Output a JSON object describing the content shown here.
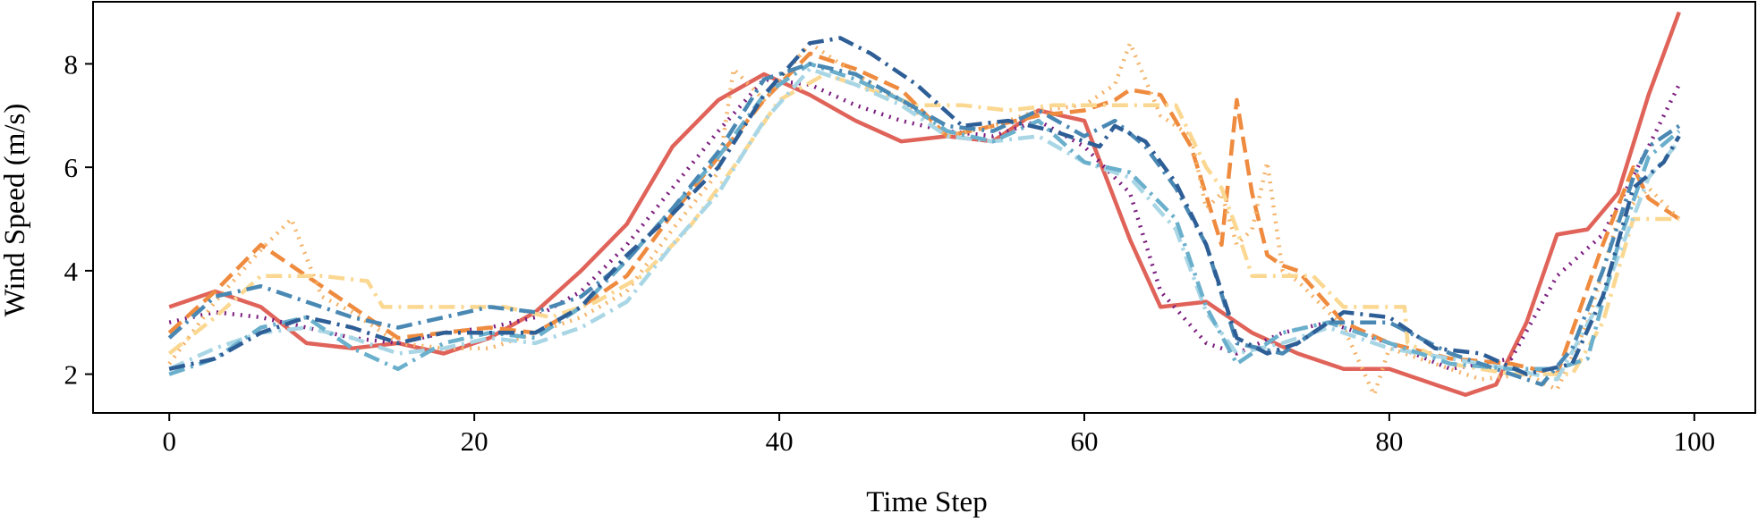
{
  "chart_data": {
    "type": "line",
    "xlabel": "Time Step",
    "ylabel": "Wind Speed (m/s)",
    "xlim": [
      -5,
      104
    ],
    "ylim": [
      1.25,
      9.2
    ],
    "xticks": [
      0,
      20,
      40,
      60,
      80,
      100
    ],
    "yticks": [
      2,
      4,
      6,
      8
    ],
    "grid": false,
    "legend": "none",
    "series": [
      {
        "color": "#e0635a",
        "dash": "solid",
        "x": [
          0,
          3,
          6,
          9,
          12,
          15,
          18,
          21,
          24,
          27,
          30,
          33,
          36,
          39,
          42,
          45,
          48,
          51,
          54,
          57,
          60,
          63,
          65,
          68,
          71,
          74,
          77,
          80,
          83,
          85,
          87,
          89,
          91,
          93,
          95,
          97,
          99
        ],
        "y": [
          3.3,
          3.6,
          3.3,
          2.6,
          2.5,
          2.6,
          2.4,
          2.7,
          3.2,
          4.0,
          4.9,
          6.4,
          7.3,
          7.8,
          7.4,
          6.9,
          6.5,
          6.6,
          6.5,
          7.1,
          6.9,
          4.6,
          3.3,
          3.4,
          2.8,
          2.4,
          2.1,
          2.1,
          1.8,
          1.6,
          1.8,
          3.0,
          4.7,
          4.8,
          5.5,
          7.4,
          9.0
        ]
      },
      {
        "color": "#7b1c7e",
        "dash": "dot",
        "x": [
          0,
          3,
          6,
          9,
          12,
          15,
          18,
          21,
          24,
          27,
          30,
          33,
          36,
          39,
          42,
          45,
          48,
          51,
          54,
          57,
          60,
          63,
          65,
          68,
          70,
          73,
          76,
          80,
          84,
          88,
          91,
          94,
          97,
          99
        ],
        "y": [
          3.0,
          3.2,
          3.1,
          2.9,
          2.7,
          2.6,
          2.8,
          2.9,
          3.1,
          3.6,
          4.5,
          5.6,
          6.7,
          7.7,
          7.6,
          7.2,
          6.9,
          6.7,
          6.6,
          6.9,
          6.4,
          5.5,
          3.6,
          2.6,
          2.4,
          2.8,
          3.0,
          2.6,
          2.1,
          2.3,
          3.9,
          4.7,
          6.4,
          7.6
        ]
      },
      {
        "color": "#ef8b3f",
        "dash": "dash",
        "x": [
          0,
          3,
          6,
          9,
          12,
          15,
          18,
          21,
          24,
          27,
          30,
          33,
          36,
          39,
          42,
          45,
          48,
          51,
          54,
          57,
          60,
          62,
          63,
          65,
          67,
          69,
          70,
          71,
          72,
          73,
          74,
          77,
          80,
          84,
          88,
          91,
          94,
          96,
          97,
          99
        ],
        "y": [
          2.8,
          3.6,
          4.5,
          3.9,
          3.3,
          2.7,
          2.8,
          2.9,
          2.8,
          3.3,
          3.9,
          5.1,
          6.2,
          7.3,
          8.2,
          7.9,
          7.5,
          6.6,
          6.8,
          7.0,
          7.1,
          7.3,
          7.5,
          7.4,
          6.4,
          4.5,
          7.3,
          5.5,
          4.3,
          4.1,
          4.0,
          3.0,
          2.6,
          2.3,
          2.2,
          2.0,
          4.5,
          6.0,
          5.4,
          5.0
        ]
      },
      {
        "color": "#f5b267",
        "dash": "dot",
        "x": [
          0,
          3,
          6,
          8,
          10,
          12,
          15,
          18,
          21,
          24,
          27,
          30,
          33,
          36,
          37,
          39,
          42,
          45,
          48,
          51,
          54,
          57,
          60,
          62,
          63,
          65,
          67,
          68,
          69,
          70,
          71,
          72,
          73,
          74,
          77,
          79,
          80,
          83,
          86,
          89,
          91,
          93,
          95,
          97,
          99
        ],
        "y": [
          2.2,
          3.4,
          4.4,
          5.0,
          3.5,
          3.2,
          2.6,
          2.5,
          2.5,
          2.8,
          3.1,
          3.6,
          4.8,
          5.9,
          7.9,
          7.3,
          8.4,
          7.8,
          7.3,
          6.6,
          6.8,
          7.1,
          7.2,
          7.6,
          8.4,
          7.0,
          6.6,
          5.2,
          5.5,
          4.5,
          4.8,
          6.1,
          4.0,
          3.8,
          2.9,
          1.6,
          2.5,
          2.2,
          1.9,
          2.0,
          1.7,
          3.0,
          5.0,
          5.6,
          5.0
        ]
      },
      {
        "color": "#fbd891",
        "dash": "dashdot",
        "x": [
          0,
          3,
          6,
          10,
          13,
          14,
          17,
          20,
          22,
          25,
          28,
          31,
          34,
          37,
          40,
          43,
          46,
          49,
          52,
          55,
          58,
          61,
          64,
          66,
          68,
          69,
          70,
          71,
          73,
          75,
          77,
          79,
          81,
          81.2,
          84,
          88,
          90,
          92,
          94,
          96,
          97,
          99
        ],
        "y": [
          2.4,
          3.1,
          3.9,
          3.9,
          3.8,
          3.3,
          3.3,
          3.3,
          3.3,
          3.1,
          3.4,
          3.9,
          4.8,
          6.0,
          7.3,
          7.8,
          7.5,
          7.2,
          7.2,
          7.1,
          7.2,
          7.2,
          7.2,
          7.2,
          6.0,
          5.6,
          4.8,
          3.9,
          3.9,
          3.9,
          3.3,
          3.3,
          3.3,
          2.6,
          2.2,
          2.0,
          2.0,
          2.0,
          3.0,
          5.0,
          5.0,
          5.0
        ]
      },
      {
        "color": "#a9d6e5",
        "dash": "dashdot",
        "x": [
          0,
          3,
          6,
          9,
          12,
          15,
          18,
          21,
          24,
          27,
          30,
          33,
          36,
          39,
          42,
          45,
          48,
          51,
          54,
          57,
          60,
          63,
          66,
          68,
          70,
          73,
          76,
          80,
          84,
          88,
          91,
          94,
          97,
          99
        ],
        "y": [
          2.1,
          2.5,
          2.8,
          2.9,
          2.7,
          2.4,
          2.5,
          2.7,
          2.6,
          2.9,
          3.4,
          4.5,
          5.5,
          6.9,
          7.9,
          7.6,
          7.2,
          6.6,
          6.5,
          6.6,
          6.1,
          5.8,
          4.8,
          3.2,
          2.4,
          2.6,
          2.9,
          2.5,
          2.3,
          2.1,
          1.9,
          3.5,
          5.8,
          6.5
        ]
      },
      {
        "color": "#6aafcc",
        "dash": "dashdot",
        "x": [
          0,
          3,
          6,
          9,
          12,
          15,
          18,
          21,
          24,
          27,
          30,
          33,
          36,
          39,
          42,
          45,
          48,
          51,
          54,
          57,
          60,
          63,
          66,
          68,
          70,
          73,
          76,
          80,
          84,
          88,
          91,
          93,
          95,
          97,
          99
        ],
        "y": [
          2.0,
          2.3,
          2.9,
          3.1,
          2.5,
          2.1,
          2.6,
          2.8,
          2.7,
          3.3,
          4.2,
          5.2,
          6.2,
          7.4,
          8.0,
          7.7,
          7.3,
          6.7,
          6.5,
          6.9,
          6.1,
          5.9,
          5.0,
          3.3,
          2.2,
          2.8,
          3.0,
          2.6,
          2.2,
          2.1,
          2.1,
          2.3,
          4.5,
          6.2,
          6.7
        ]
      },
      {
        "color": "#4a88b4",
        "dash": "dashdot",
        "x": [
          0,
          3,
          6,
          9,
          12,
          15,
          18,
          21,
          24,
          27,
          30,
          33,
          36,
          39,
          42,
          45,
          48,
          51,
          54,
          57,
          60,
          62,
          64,
          66,
          68,
          70,
          73,
          76,
          80,
          84,
          88,
          90,
          92,
          94,
          96,
          97,
          99
        ],
        "y": [
          2.7,
          3.5,
          3.7,
          3.4,
          3.1,
          2.9,
          3.1,
          3.3,
          3.2,
          3.5,
          4.2,
          5.2,
          6.3,
          7.7,
          8.0,
          7.8,
          7.3,
          6.8,
          6.7,
          7.1,
          6.6,
          6.9,
          6.4,
          5.6,
          4.5,
          2.6,
          2.4,
          3.0,
          3.0,
          2.4,
          2.0,
          1.8,
          2.5,
          4.0,
          5.8,
          6.4,
          6.8
        ]
      },
      {
        "color": "#2e5e96",
        "dash": "dashdot",
        "x": [
          0,
          3,
          6,
          9,
          12,
          15,
          18,
          21,
          24,
          27,
          30,
          33,
          36,
          39,
          42,
          44,
          46,
          49,
          52,
          55,
          58,
          61,
          62,
          64,
          66,
          68,
          70,
          72,
          74,
          77,
          80,
          83,
          86,
          89,
          92,
          94,
          96,
          98,
          99
        ],
        "y": [
          2.1,
          2.3,
          2.8,
          3.1,
          2.9,
          2.6,
          2.8,
          2.8,
          2.8,
          3.3,
          4.3,
          5.1,
          6.0,
          7.4,
          8.4,
          8.5,
          8.2,
          7.6,
          6.8,
          6.9,
          6.7,
          6.4,
          6.8,
          6.5,
          5.7,
          4.5,
          2.7,
          2.4,
          2.6,
          3.2,
          3.1,
          2.5,
          2.4,
          2.0,
          2.2,
          3.5,
          5.6,
          6.1,
          6.6
        ]
      }
    ]
  }
}
